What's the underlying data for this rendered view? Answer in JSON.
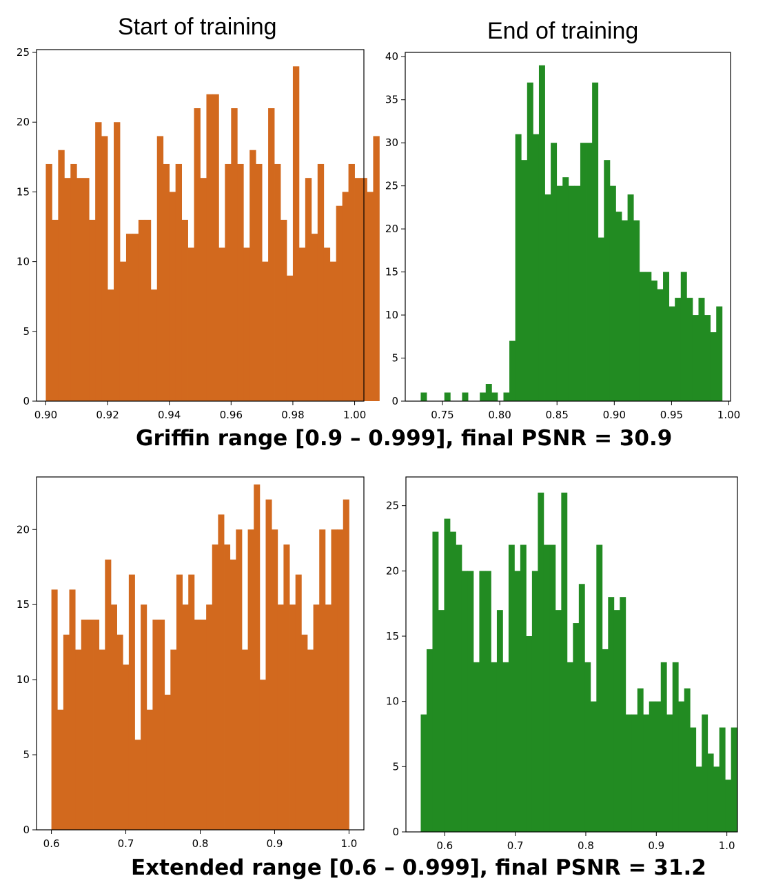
{
  "titles": {
    "start": "Start of training",
    "end": "End of training",
    "row1": "Griffin range [0.9 – 0.999], final PSNR = 30.9",
    "row2": "Extended range [0.6 – 0.999], final PSNR = 31.2"
  },
  "colors": {
    "orange": "#d2691e",
    "green": "#228b22"
  },
  "chart_data": [
    {
      "type": "bar",
      "subtype": "histogram",
      "id": "griffin-start",
      "title": "Start of training",
      "color": "#d2691e",
      "bin_start": 0.9,
      "bin_width": 0.002,
      "xlim": [
        0.897,
        1.003
      ],
      "ylim": [
        0,
        25.2
      ],
      "xticks": [
        0.9,
        0.92,
        0.94,
        0.96,
        0.98,
        1.0
      ],
      "xtick_labels": [
        "0.90",
        "0.92",
        "0.94",
        "0.96",
        "0.98",
        "1.00"
      ],
      "yticks": [
        0,
        5,
        10,
        15,
        20,
        25
      ],
      "ytick_labels": [
        "0",
        "5",
        "10",
        "15",
        "20",
        "25"
      ],
      "values": [
        17,
        13,
        18,
        16,
        17,
        16,
        16,
        13,
        20,
        19,
        8,
        20,
        10,
        12,
        12,
        13,
        13,
        8,
        19,
        17,
        15,
        17,
        13,
        11,
        21,
        16,
        22,
        22,
        11,
        17,
        21,
        17,
        11,
        18,
        17,
        10,
        21,
        17,
        13,
        9,
        24,
        11,
        16,
        12,
        17,
        11,
        10,
        14,
        15,
        17,
        16,
        16,
        15,
        19
      ]
    },
    {
      "type": "bar",
      "subtype": "histogram",
      "id": "griffin-end",
      "title": "End of training",
      "color": "#228b22",
      "bin_start": 0.731,
      "bin_width": 0.00516,
      "xlim": [
        0.7175,
        1.0015
      ],
      "ylim": [
        0,
        40.5
      ],
      "xticks": [
        0.75,
        0.8,
        0.85,
        0.9,
        0.95,
        1.0
      ],
      "xtick_labels": [
        "0.75",
        "0.80",
        "0.85",
        "0.90",
        "0.95",
        "1.00"
      ],
      "yticks": [
        0,
        5,
        10,
        15,
        20,
        25,
        30,
        35,
        40
      ],
      "ytick_labels": [
        "0",
        "5",
        "10",
        "15",
        "20",
        "25",
        "30",
        "35",
        "40"
      ],
      "values": [
        1,
        0,
        0,
        0,
        1,
        0,
        0,
        1,
        0,
        0,
        1,
        2,
        1,
        0,
        1,
        7,
        31,
        28,
        37,
        31,
        39,
        24,
        30,
        25,
        26,
        25,
        25,
        30,
        30,
        37,
        19,
        28,
        25,
        22,
        21,
        24,
        21,
        15,
        15,
        14,
        13,
        15,
        11,
        12,
        15,
        12,
        10,
        12,
        10,
        8,
        11
      ]
    },
    {
      "type": "bar",
      "subtype": "histogram",
      "id": "extended-start",
      "title": "",
      "color": "#d2691e",
      "bin_start": 0.6,
      "bin_width": 0.008,
      "xlim": [
        0.58,
        1.02
      ],
      "ylim": [
        0,
        23.5
      ],
      "xticks": [
        0.6,
        0.7,
        0.8,
        0.9,
        1.0
      ],
      "xtick_labels": [
        "0.6",
        "0.7",
        "0.8",
        "0.9",
        "1.0"
      ],
      "yticks": [
        0,
        5,
        10,
        15,
        20
      ],
      "ytick_labels": [
        "0",
        "5",
        "10",
        "15",
        "20"
      ],
      "values": [
        16,
        8,
        13,
        16,
        12,
        14,
        14,
        14,
        12,
        18,
        15,
        13,
        11,
        17,
        6,
        15,
        8,
        14,
        14,
        9,
        12,
        17,
        15,
        17,
        14,
        14,
        15,
        19,
        21,
        19,
        18,
        20,
        12,
        20,
        23,
        10,
        22,
        20,
        15,
        19,
        15,
        17,
        13,
        12,
        15,
        20,
        15,
        20,
        20,
        22
      ]
    },
    {
      "type": "bar",
      "subtype": "histogram",
      "id": "extended-end",
      "title": "",
      "color": "#228b22",
      "bin_start": 0.566,
      "bin_width": 0.0083,
      "xlim": [
        0.545,
        1.015
      ],
      "ylim": [
        0,
        27.2
      ],
      "xticks": [
        0.6,
        0.7,
        0.8,
        0.9,
        1.0
      ],
      "xtick_labels": [
        "0.6",
        "0.7",
        "0.8",
        "0.9",
        "1.0"
      ],
      "yticks": [
        0,
        5,
        10,
        15,
        20,
        25
      ],
      "ytick_labels": [
        "0",
        "5",
        "10",
        "15",
        "20",
        "25"
      ],
      "values": [
        9,
        14,
        23,
        17,
        24,
        23,
        22,
        20,
        20,
        13,
        20,
        20,
        13,
        17,
        13,
        22,
        20,
        22,
        15,
        20,
        26,
        22,
        22,
        17,
        26,
        13,
        16,
        19,
        13,
        10,
        22,
        14,
        18,
        17,
        18,
        9,
        9,
        11,
        9,
        10,
        10,
        13,
        9,
        13,
        10,
        11,
        8,
        5,
        9,
        6,
        5,
        8,
        4,
        8
      ]
    }
  ]
}
